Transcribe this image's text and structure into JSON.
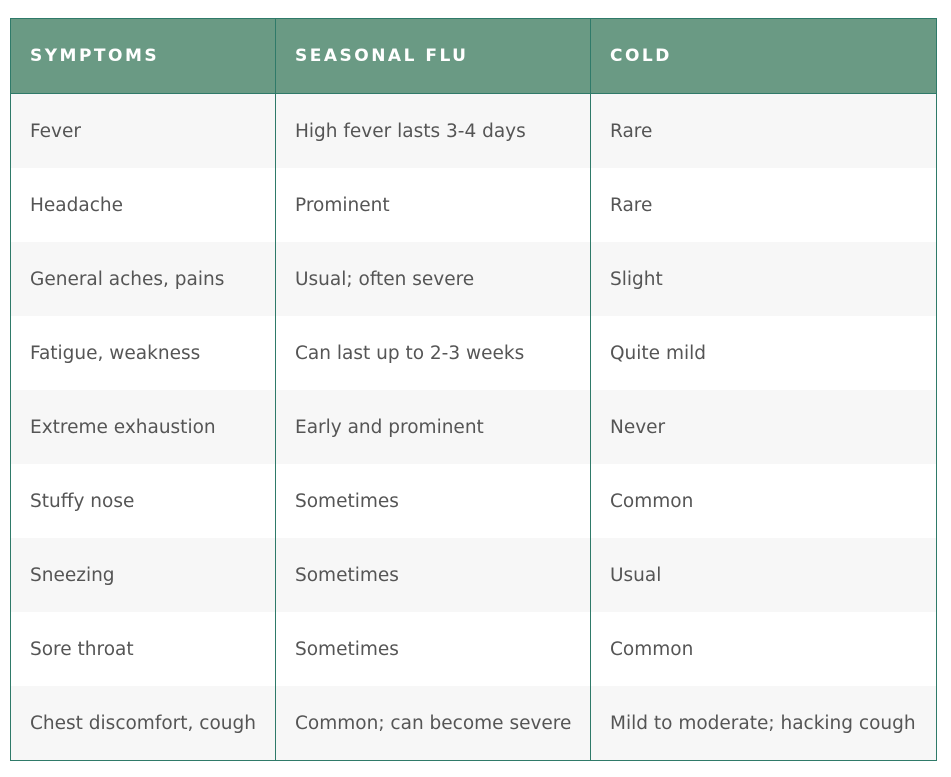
{
  "table": {
    "columns": [
      "SYMPTOMS",
      "SEASONAL FLU",
      "COLD"
    ],
    "rows": [
      [
        "Fever",
        "High fever lasts 3-4 days",
        "Rare"
      ],
      [
        "Headache",
        "Prominent",
        "Rare"
      ],
      [
        "General aches, pains",
        "Usual; often severe",
        "Slight"
      ],
      [
        "Fatigue, weakness",
        "Can last up to 2-3 weeks",
        "Quite mild"
      ],
      [
        "Extreme exhaustion",
        "Early and prominent",
        "Never"
      ],
      [
        "Stuffy nose",
        "Sometimes",
        "Common"
      ],
      [
        "Sneezing",
        "Sometimes",
        "Usual"
      ],
      [
        "Sore throat",
        "Sometimes",
        "Common"
      ],
      [
        "Chest discomfort, cough",
        "Common; can become severe",
        "Mild to moderate; hacking cough"
      ]
    ]
  }
}
